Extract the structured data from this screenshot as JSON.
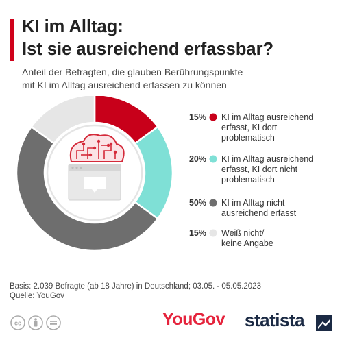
{
  "header": {
    "title_line1": "KI im Alltag:",
    "title_line2": "Ist sie ausreichend erfassbar?",
    "subtitle_line1": "Anteil der Befragten, die glauben Berührungspunkte",
    "subtitle_line2": "mit KI im Alltag ausreichend erfassen zu können"
  },
  "chart_data": {
    "type": "pie",
    "style": "donut",
    "title": "KI im Alltag: Ist sie ausreichend erfassbar?",
    "subtitle": "Anteil der Befragten, die glauben Berührungspunkte mit KI im Alltag ausreichend erfassen zu können",
    "unit": "%",
    "slices": [
      {
        "label_lines": [
          "KI im Alltag ausreichend",
          "erfasst, KI dort",
          "problematisch"
        ],
        "value": 15,
        "value_label": "15%",
        "color": "#c8001a"
      },
      {
        "label_lines": [
          "KI im Alltag ausreichend",
          "erfasst, KI dort nicht",
          "problematisch"
        ],
        "value": 20,
        "value_label": "20%",
        "color": "#7fe0d6"
      },
      {
        "label_lines": [
          "KI im Alltag nicht",
          "ausreichend erfasst"
        ],
        "value": 50,
        "value_label": "50%",
        "color": "#6e6e6e"
      },
      {
        "label_lines": [
          "Weiß nicht/",
          "keine Angabe"
        ],
        "value": 15,
        "value_label": "15%",
        "color": "#e6e6e6"
      }
    ],
    "legend_position": "right",
    "center_icon": "ai-brain-browser-icon"
  },
  "footer": {
    "basis": "Basis: 2.039 Befragte (ab 18 Jahre) in Deutschland; 03.05. - 05.05.2023",
    "source": "Quelle: YouGov",
    "license_icons": [
      "cc-icon",
      "by-icon",
      "nd-icon"
    ],
    "partner_logo": "YouGov",
    "brand_logo": "statista"
  },
  "colors": {
    "accent": "#d0021b",
    "brand": "#1b2a44",
    "yougov": "#e5233c"
  }
}
